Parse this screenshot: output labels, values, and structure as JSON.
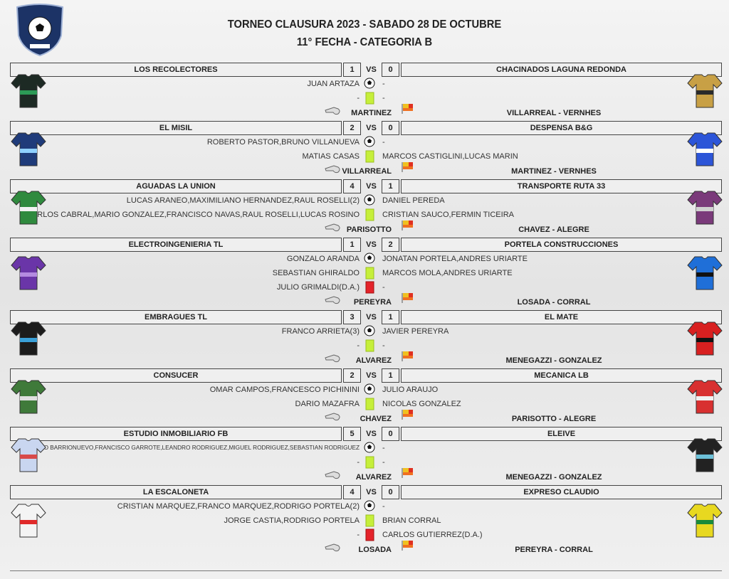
{
  "header": {
    "title": "TORNEO CLAUSURA 2023 - SABADO 28 DE OCTUBRE",
    "subtitle": "11° FECHA - CATEGORIA B"
  },
  "vs_label": "VS",
  "matches": [
    {
      "home": {
        "team": "LOS RECOLECTORES",
        "score": 1,
        "goals": "JUAN ARTAZA",
        "yellow": "-"
      },
      "away": {
        "team": "CHACINADOS LAGUNA REDONDA",
        "score": 0,
        "goals": "-",
        "yellow": "-"
      },
      "referee": "MARTINEZ",
      "assistants": "VILLARREAL - VERNHES"
    },
    {
      "home": {
        "team": "EL MISIL",
        "score": 2,
        "goals": "ROBERTO PASTOR,BRUNO VILLANUEVA",
        "yellow": "MATIAS CASAS"
      },
      "away": {
        "team": "DESPENSA B&G",
        "score": 0,
        "goals": "-",
        "yellow": "MARCOS CASTIGLINI,LUCAS MARIN"
      },
      "referee": "VILLARREAL",
      "assistants": "MARTINEZ - VERNHES"
    },
    {
      "home": {
        "team": "AGUADAS LA UNION",
        "score": 4,
        "goals": "LUCAS ARANEO,MAXIMILIANO HERNANDEZ,RAUL ROSELLI(2)",
        "yellow": "CARLOS CABRAL,MARIO GONZALEZ,FRANCISCO NAVAS,RAUL ROSELLI,LUCAS ROSINO"
      },
      "away": {
        "team": "TRANSPORTE RUTA 33",
        "score": 1,
        "goals": "DANIEL PEREDA",
        "yellow": "CRISTIAN SAUCO,FERMIN TICEIRA"
      },
      "referee": "PARISOTTO",
      "assistants": "CHAVEZ - ALEGRE"
    },
    {
      "home": {
        "team": "ELECTROINGENIERIA TL",
        "score": 1,
        "goals": "GONZALO ARANDA",
        "yellow": "SEBASTIAN GHIRALDO",
        "red": "JULIO GRIMALDI(D.A.)"
      },
      "away": {
        "team": "PORTELA CONSTRUCCIONES",
        "score": 2,
        "goals": "JONATAN PORTELA,ANDRES URIARTE",
        "yellow": "MARCOS MOLA,ANDRES URIARTE",
        "red": "-"
      },
      "referee": "PEREYRA",
      "assistants": "LOSADA - CORRAL"
    },
    {
      "home": {
        "team": "EMBRAGUES TL",
        "score": 3,
        "goals": "FRANCO ARRIETA(3)",
        "yellow": "-"
      },
      "away": {
        "team": "EL MATE",
        "score": 1,
        "goals": "JAVIER PEREYRA",
        "yellow": "-"
      },
      "referee": "ALVAREZ",
      "assistants": "MENEGAZZI - GONZALEZ"
    },
    {
      "home": {
        "team": "CONSUCER",
        "score": 2,
        "goals": "OMAR CAMPOS,FRANCESCO PICHININI",
        "yellow": "DARIO MAZAFRA"
      },
      "away": {
        "team": "MECANICA LB",
        "score": 1,
        "goals": "JULIO ARAUJO",
        "yellow": "NICOLAS GONZALEZ"
      },
      "referee": "CHAVEZ",
      "assistants": "PARISOTTO - ALEGRE"
    },
    {
      "home": {
        "team": "ESTUDIO INMOBILIARIO FB",
        "score": 5,
        "goals": "FRANCO BARRIONUEVO,FRANCISCO GARROTE,LEANDRO RODRIGUEZ,MIGUEL RODRIGUEZ,SEBASTIAN RODRIGUEZ",
        "yellow": "-"
      },
      "away": {
        "team": "ELEIVE",
        "score": 0,
        "goals": "-",
        "yellow": "-"
      },
      "referee": "ALVAREZ",
      "assistants": "MENEGAZZI - GONZALEZ"
    },
    {
      "home": {
        "team": "LA ESCALONETA",
        "score": 4,
        "goals": "CRISTIAN MARQUEZ,FRANCO MARQUEZ,RODRIGO PORTELA(2)",
        "yellow": "JORGE CASTIA,RODRIGO PORTELA",
        "red": "-"
      },
      "away": {
        "team": "EXPRESO CLAUDIO",
        "score": 0,
        "goals": "-",
        "yellow": "BRIAN CORRAL",
        "red": "CARLOS GUTIERREZ(D.A.)"
      },
      "referee": "LOSADA",
      "assistants": "PEREYRA - CORRAL"
    }
  ]
}
